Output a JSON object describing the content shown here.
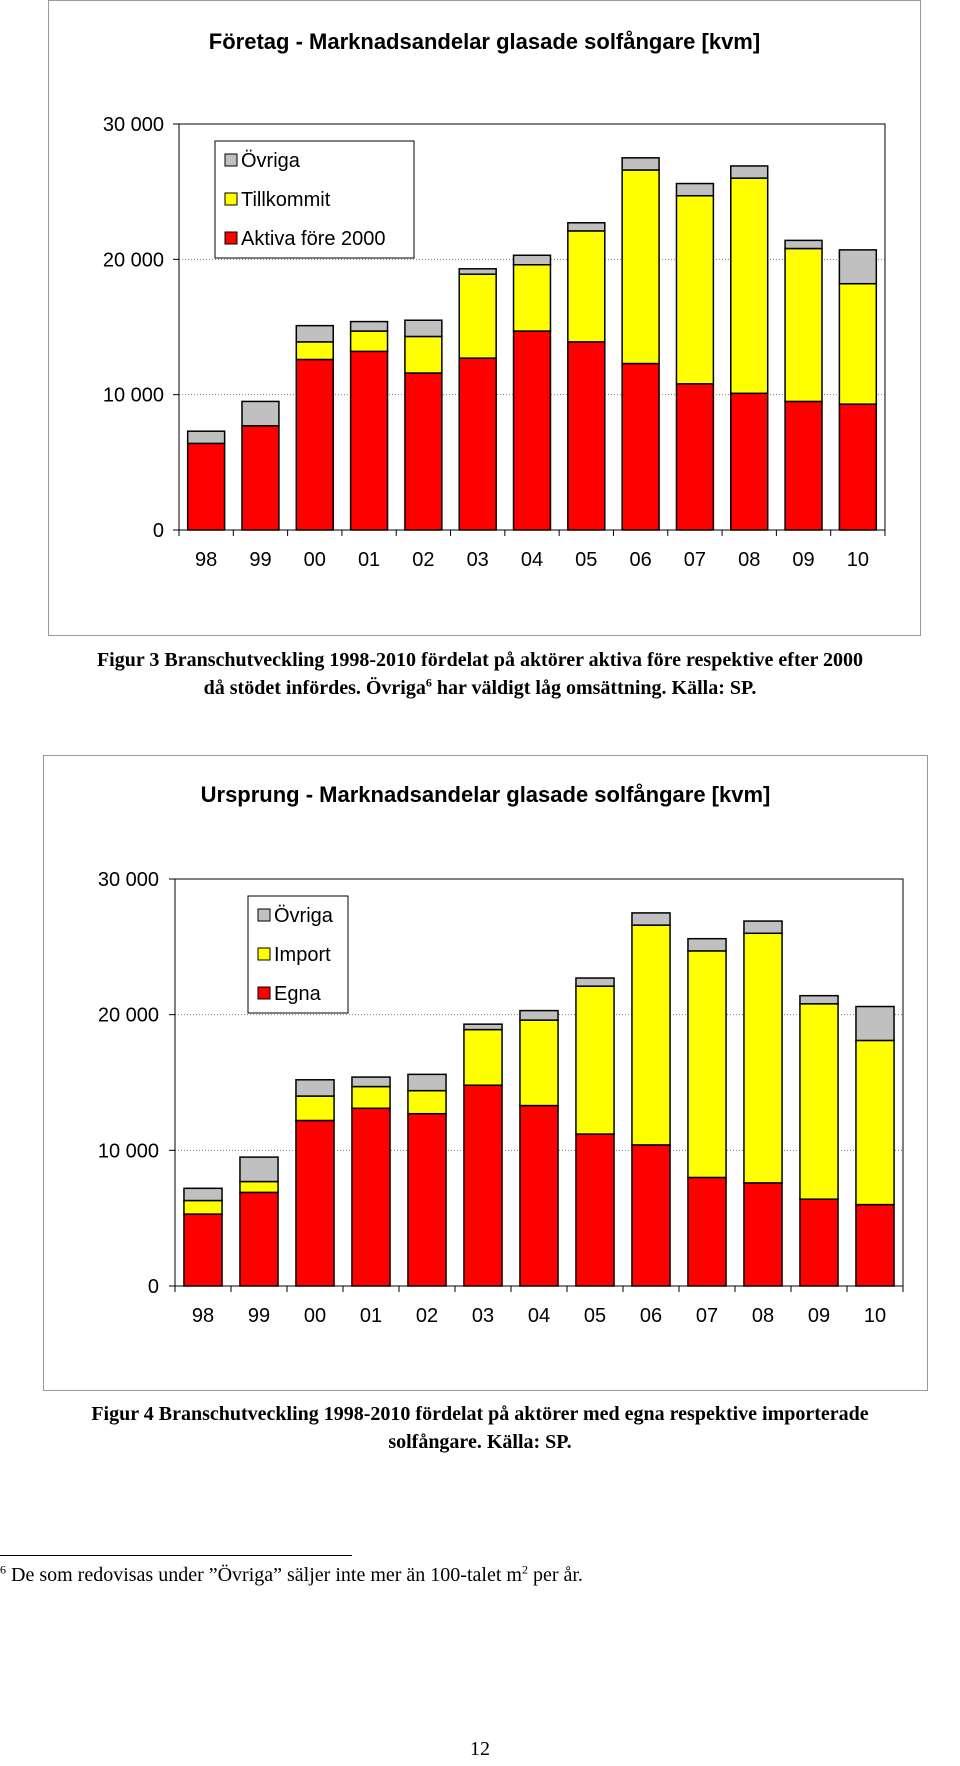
{
  "colors": {
    "ovriga": "#c0c0c0",
    "middle": "#ffff00",
    "bottom": "#ff0000",
    "gridline": "#808080",
    "border": "#000000"
  },
  "chart_data": [
    {
      "type": "bar",
      "stacked": true,
      "title": "Företag - Marknadsandelar glasade solfångare [kvm]",
      "xlabel": "",
      "ylabel": "",
      "categories": [
        "98",
        "99",
        "00",
        "01",
        "02",
        "03",
        "04",
        "05",
        "06",
        "07",
        "08",
        "09",
        "10"
      ],
      "ylim": [
        0,
        30000
      ],
      "yticks": [
        0,
        10000,
        20000,
        30000
      ],
      "ytick_labels": [
        "0",
        "10 000",
        "20 000",
        "30 000"
      ],
      "grid": "horizontal dotted",
      "legend_position": "top-left",
      "series": [
        {
          "name": "Aktiva före 2000",
          "values": [
            6400,
            7700,
            12600,
            13200,
            11600,
            12700,
            14700,
            13900,
            12300,
            10800,
            10100,
            9500,
            9300
          ]
        },
        {
          "name": "Tillkommit",
          "values": [
            0,
            0,
            1300,
            1500,
            2700,
            6200,
            4900,
            8200,
            14300,
            13900,
            15900,
            11300,
            8900
          ]
        },
        {
          "name": "Övriga",
          "values": [
            900,
            1800,
            1200,
            700,
            1200,
            400,
            700,
            600,
            900,
            900,
            900,
            600,
            2500
          ]
        }
      ]
    },
    {
      "type": "bar",
      "stacked": true,
      "title": "Ursprung - Marknadsandelar glasade solfångare [kvm]",
      "xlabel": "",
      "ylabel": "",
      "categories": [
        "98",
        "99",
        "00",
        "01",
        "02",
        "03",
        "04",
        "05",
        "06",
        "07",
        "08",
        "09",
        "10"
      ],
      "ylim": [
        0,
        30000
      ],
      "yticks": [
        0,
        10000,
        20000,
        30000
      ],
      "ytick_labels": [
        "0",
        "10 000",
        "20 000",
        "30 000"
      ],
      "grid": "horizontal dotted",
      "legend_position": "top-left",
      "series": [
        {
          "name": "Egna",
          "values": [
            5300,
            6900,
            12200,
            13100,
            12700,
            14800,
            13300,
            11200,
            10400,
            8000,
            7600,
            6400,
            6000
          ]
        },
        {
          "name": "Import",
          "values": [
            1000,
            800,
            1800,
            1600,
            1700,
            4100,
            6300,
            10900,
            16200,
            16700,
            18400,
            14400,
            12100
          ]
        },
        {
          "name": "Övriga",
          "values": [
            900,
            1800,
            1200,
            700,
            1200,
            400,
            700,
            600,
            900,
            900,
            900,
            600,
            2500
          ]
        }
      ]
    }
  ],
  "caption3": {
    "line1": "Figur 3 Branschutveckling 1998-2010 fördelat på aktörer aktiva före respektive efter 2000",
    "line2_a": "då stödet infördes.  Övriga",
    "line2_ref": "6",
    "line2_b": " har väldigt låg omsättning.  Källa: SP."
  },
  "caption4": {
    "line1": "Figur 4 Branschutveckling 1998-2010 fördelat på aktörer med egna respektive importerade",
    "line2": "solfångare.  Källa: SP."
  },
  "footnote": {
    "number": "6",
    "text_a": " De som redovisas under ”Övriga” säljer inte mer än 100-talet m",
    "sup": "2",
    "text_b": " per år."
  },
  "page_number": "12"
}
